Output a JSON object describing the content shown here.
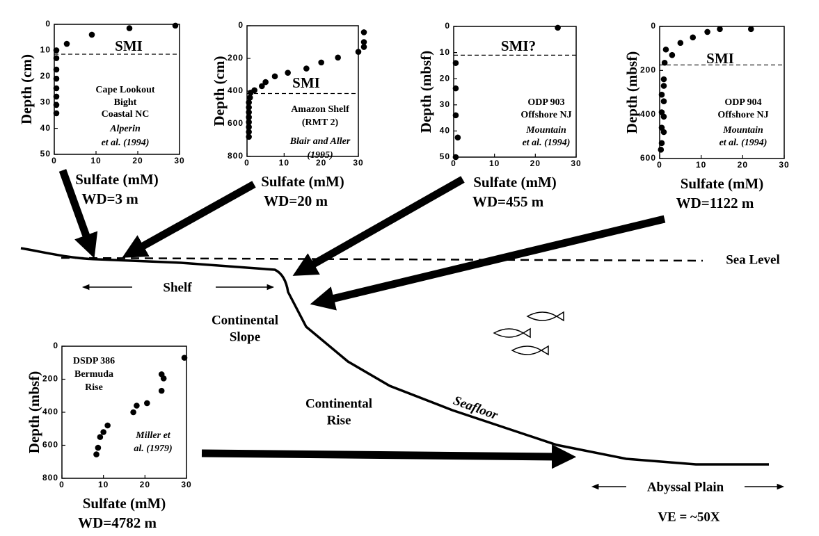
{
  "chart_data": [
    {
      "type": "scatter",
      "xlabel": "Sulfate (mM)",
      "ylabel": "Depth (cm)",
      "footer": "WD=3 m",
      "annotations": [
        "Cape Lookout",
        "Bight",
        "Coastal NC",
        "Alperin",
        "et al. (1994)"
      ],
      "threshold": {
        "label": "SMI",
        "value": 11.5
      },
      "x": [
        29,
        18,
        9,
        3,
        0.5,
        0.5,
        0.5,
        0.5,
        0.5,
        0.5,
        0.5,
        0.5
      ],
      "y": [
        0.5,
        1.5,
        4,
        7.5,
        10,
        13,
        17.4,
        20.9,
        24.6,
        27.8,
        31,
        34.2
      ],
      "color": "#000000",
      "xlim": [
        0,
        30
      ],
      "xticks": [
        0,
        10,
        20,
        30
      ],
      "ylim": [
        0,
        50
      ],
      "yticks": [
        0,
        10,
        20,
        30,
        40,
        50
      ],
      "y_inverted": true
    },
    {
      "type": "scatter",
      "xlabel": "Sulfate (mM)",
      "ylabel": "Depth (cm)",
      "footer": "WD=20 m",
      "annotations": [
        "Amazon Shelf",
        "(RMT 2)",
        "Blair and Aller",
        "(1995)"
      ],
      "threshold": {
        "label": "SMI",
        "value": 415
      },
      "x": [
        31.5,
        31.5,
        31.5,
        30,
        24.5,
        20,
        16,
        11,
        7.5,
        5,
        4,
        2,
        1,
        0.8,
        0.5,
        0.5,
        0.5,
        0.5,
        0.5,
        0.5,
        0.5,
        0.5
      ],
      "y": [
        40,
        100,
        130,
        160,
        195,
        225,
        262,
        288,
        310,
        345,
        370,
        395,
        410,
        440,
        470,
        500,
        530,
        560,
        590,
        620,
        650,
        680
      ],
      "color": "#000000",
      "xlim": [
        0,
        30
      ],
      "xticks": [
        0,
        10,
        20,
        30
      ],
      "ylim": [
        0,
        800
      ],
      "yticks": [
        0,
        200,
        400,
        600,
        800
      ],
      "y_inverted": true
    },
    {
      "type": "scatter",
      "xlabel": "Sulfate (mM)",
      "ylabel": "Depth (mbsf)",
      "footer": "WD=455 m",
      "annotations": [
        "ODP 903",
        "Offshore NJ",
        "Mountain",
        "et al. (1994)"
      ],
      "threshold": {
        "label": "SMI?",
        "value": 11
      },
      "x": [
        25.5,
        0.5,
        0.5,
        0.5,
        1,
        0.5
      ],
      "y": [
        0.5,
        14,
        23.7,
        34,
        42.5,
        50
      ],
      "color": "#000000",
      "xlim": [
        0,
        30
      ],
      "xticks": [
        0,
        10,
        20,
        30
      ],
      "ylim": [
        0,
        50
      ],
      "yticks": [
        0,
        10,
        20,
        30,
        40,
        50
      ],
      "y_inverted": true
    },
    {
      "type": "scatter",
      "xlabel": "Sulfate (mM)",
      "ylabel": "Depth (mbsf)",
      "footer": "WD=1122 m",
      "annotations": [
        "ODP 904",
        "Offshore NJ",
        "Mountain",
        "et al. (1994)"
      ],
      "threshold": {
        "label": "SMI",
        "value": 175
      },
      "x": [
        22,
        14.5,
        11.5,
        8,
        5,
        3,
        1.5,
        1.2,
        1,
        1,
        0.5,
        1,
        0.5,
        1,
        0.5,
        1,
        0.5,
        0.3
      ],
      "y": [
        12,
        12,
        25,
        50,
        75,
        130,
        105,
        165,
        240,
        270,
        310,
        340,
        390,
        410,
        460,
        480,
        530,
        560
      ],
      "color": "#000000",
      "xlim": [
        0,
        30
      ],
      "xticks": [
        0,
        10,
        20,
        30
      ],
      "ylim": [
        0,
        600
      ],
      "yticks": [
        0,
        200,
        400,
        600
      ],
      "y_inverted": true
    },
    {
      "type": "scatter",
      "xlabel": "Sulfate (mM)",
      "ylabel": "Depth (mbsf)",
      "footer": "WD=4782 m",
      "annotations": [
        "DSDP 386",
        "Bermuda",
        "Rise",
        "Miller et",
        "al. (1979)"
      ],
      "x": [
        29.5,
        24,
        24.5,
        24,
        18,
        20.5,
        17.2,
        11,
        10,
        9.2,
        8.7,
        8.3
      ],
      "y": [
        70,
        170,
        195,
        270,
        360,
        345,
        400,
        480,
        520,
        550,
        615,
        655
      ],
      "color": "#000000",
      "xlim": [
        0,
        30
      ],
      "xticks": [
        0,
        10,
        20,
        30
      ],
      "ylim": [
        0,
        800
      ],
      "yticks": [
        0,
        200,
        400,
        600,
        800
      ],
      "y_inverted": true
    }
  ],
  "diagram": {
    "sea_level": "Sea Level",
    "shelf": "Shelf",
    "slope": [
      "Continental",
      "Slope"
    ],
    "rise": [
      "Continental",
      "Rise"
    ],
    "seafloor": "Seafloor",
    "abyssal": "Abyssal Plain",
    "ve": "VE = ~50X"
  }
}
